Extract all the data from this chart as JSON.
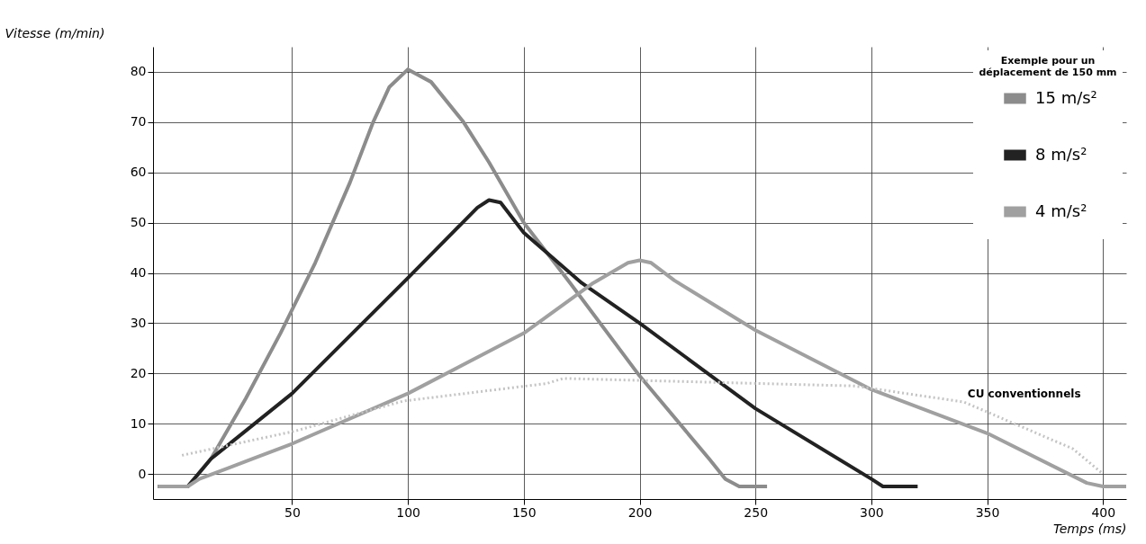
{
  "chart_data": {
    "type": "line",
    "xlabel": "Temps (ms)",
    "ylabel": "Vitesse (m/min)",
    "legend_title": "Exemple pour un déplacement de 150 mm",
    "legend": "top right",
    "grid": true,
    "line_style": "solid",
    "marker": "none",
    "xlim": [
      -10,
      410
    ],
    "xticks": [
      50,
      100,
      150,
      200,
      250,
      300,
      350,
      400
    ],
    "ylim": [
      -5,
      85
    ],
    "yticks": [
      0,
      10,
      20,
      30,
      40,
      50,
      60,
      70,
      80
    ],
    "series": [
      {
        "name": "15 m/s²",
        "color": "#8c8c8c",
        "x": [
          -8,
          5,
          15,
          30,
          45,
          60,
          75,
          85,
          92,
          100,
          110,
          124,
          135,
          150,
          170,
          200,
          230,
          237,
          243,
          255
        ],
        "values": [
          -2.5,
          -2.5,
          3,
          15,
          28,
          42,
          58,
          70,
          77,
          80.5,
          78,
          70,
          62,
          50,
          38,
          19.5,
          3,
          -1,
          -2.5,
          -2.5
        ]
      },
      {
        "name": "8 m/s²",
        "color": "#222222",
        "x": [
          -8,
          5,
          15,
          50,
          100,
          130,
          135,
          140,
          150,
          175,
          200,
          250,
          300,
          305,
          320
        ],
        "values": [
          -2.5,
          -2.5,
          3,
          16,
          39,
          53,
          54.5,
          54,
          48,
          38,
          30,
          13,
          -1,
          -2.5,
          -2.5
        ]
      },
      {
        "name": "4 m/s²",
        "color": "#a0a0a0",
        "x": [
          -8,
          5,
          10,
          50,
          100,
          150,
          180,
          195,
          200,
          205,
          215,
          250,
          300,
          350,
          393,
          400,
          410
        ],
        "values": [
          -2.5,
          -2.5,
          -1,
          6,
          16,
          28,
          38,
          42,
          42.5,
          42,
          38.5,
          28.6,
          16.8,
          8.1,
          -1.8,
          -2.5,
          -2.5
        ]
      },
      {
        "name": "CU conventionnels",
        "color": "#c4c4c4",
        "line_style": "dotted",
        "x": [
          2.5,
          51,
          98,
          160,
          167,
          293,
          340,
          387,
          400
        ],
        "values": [
          3.7,
          8.5,
          14.5,
          18,
          19,
          17.5,
          14.3,
          5,
          0
        ]
      }
    ]
  }
}
